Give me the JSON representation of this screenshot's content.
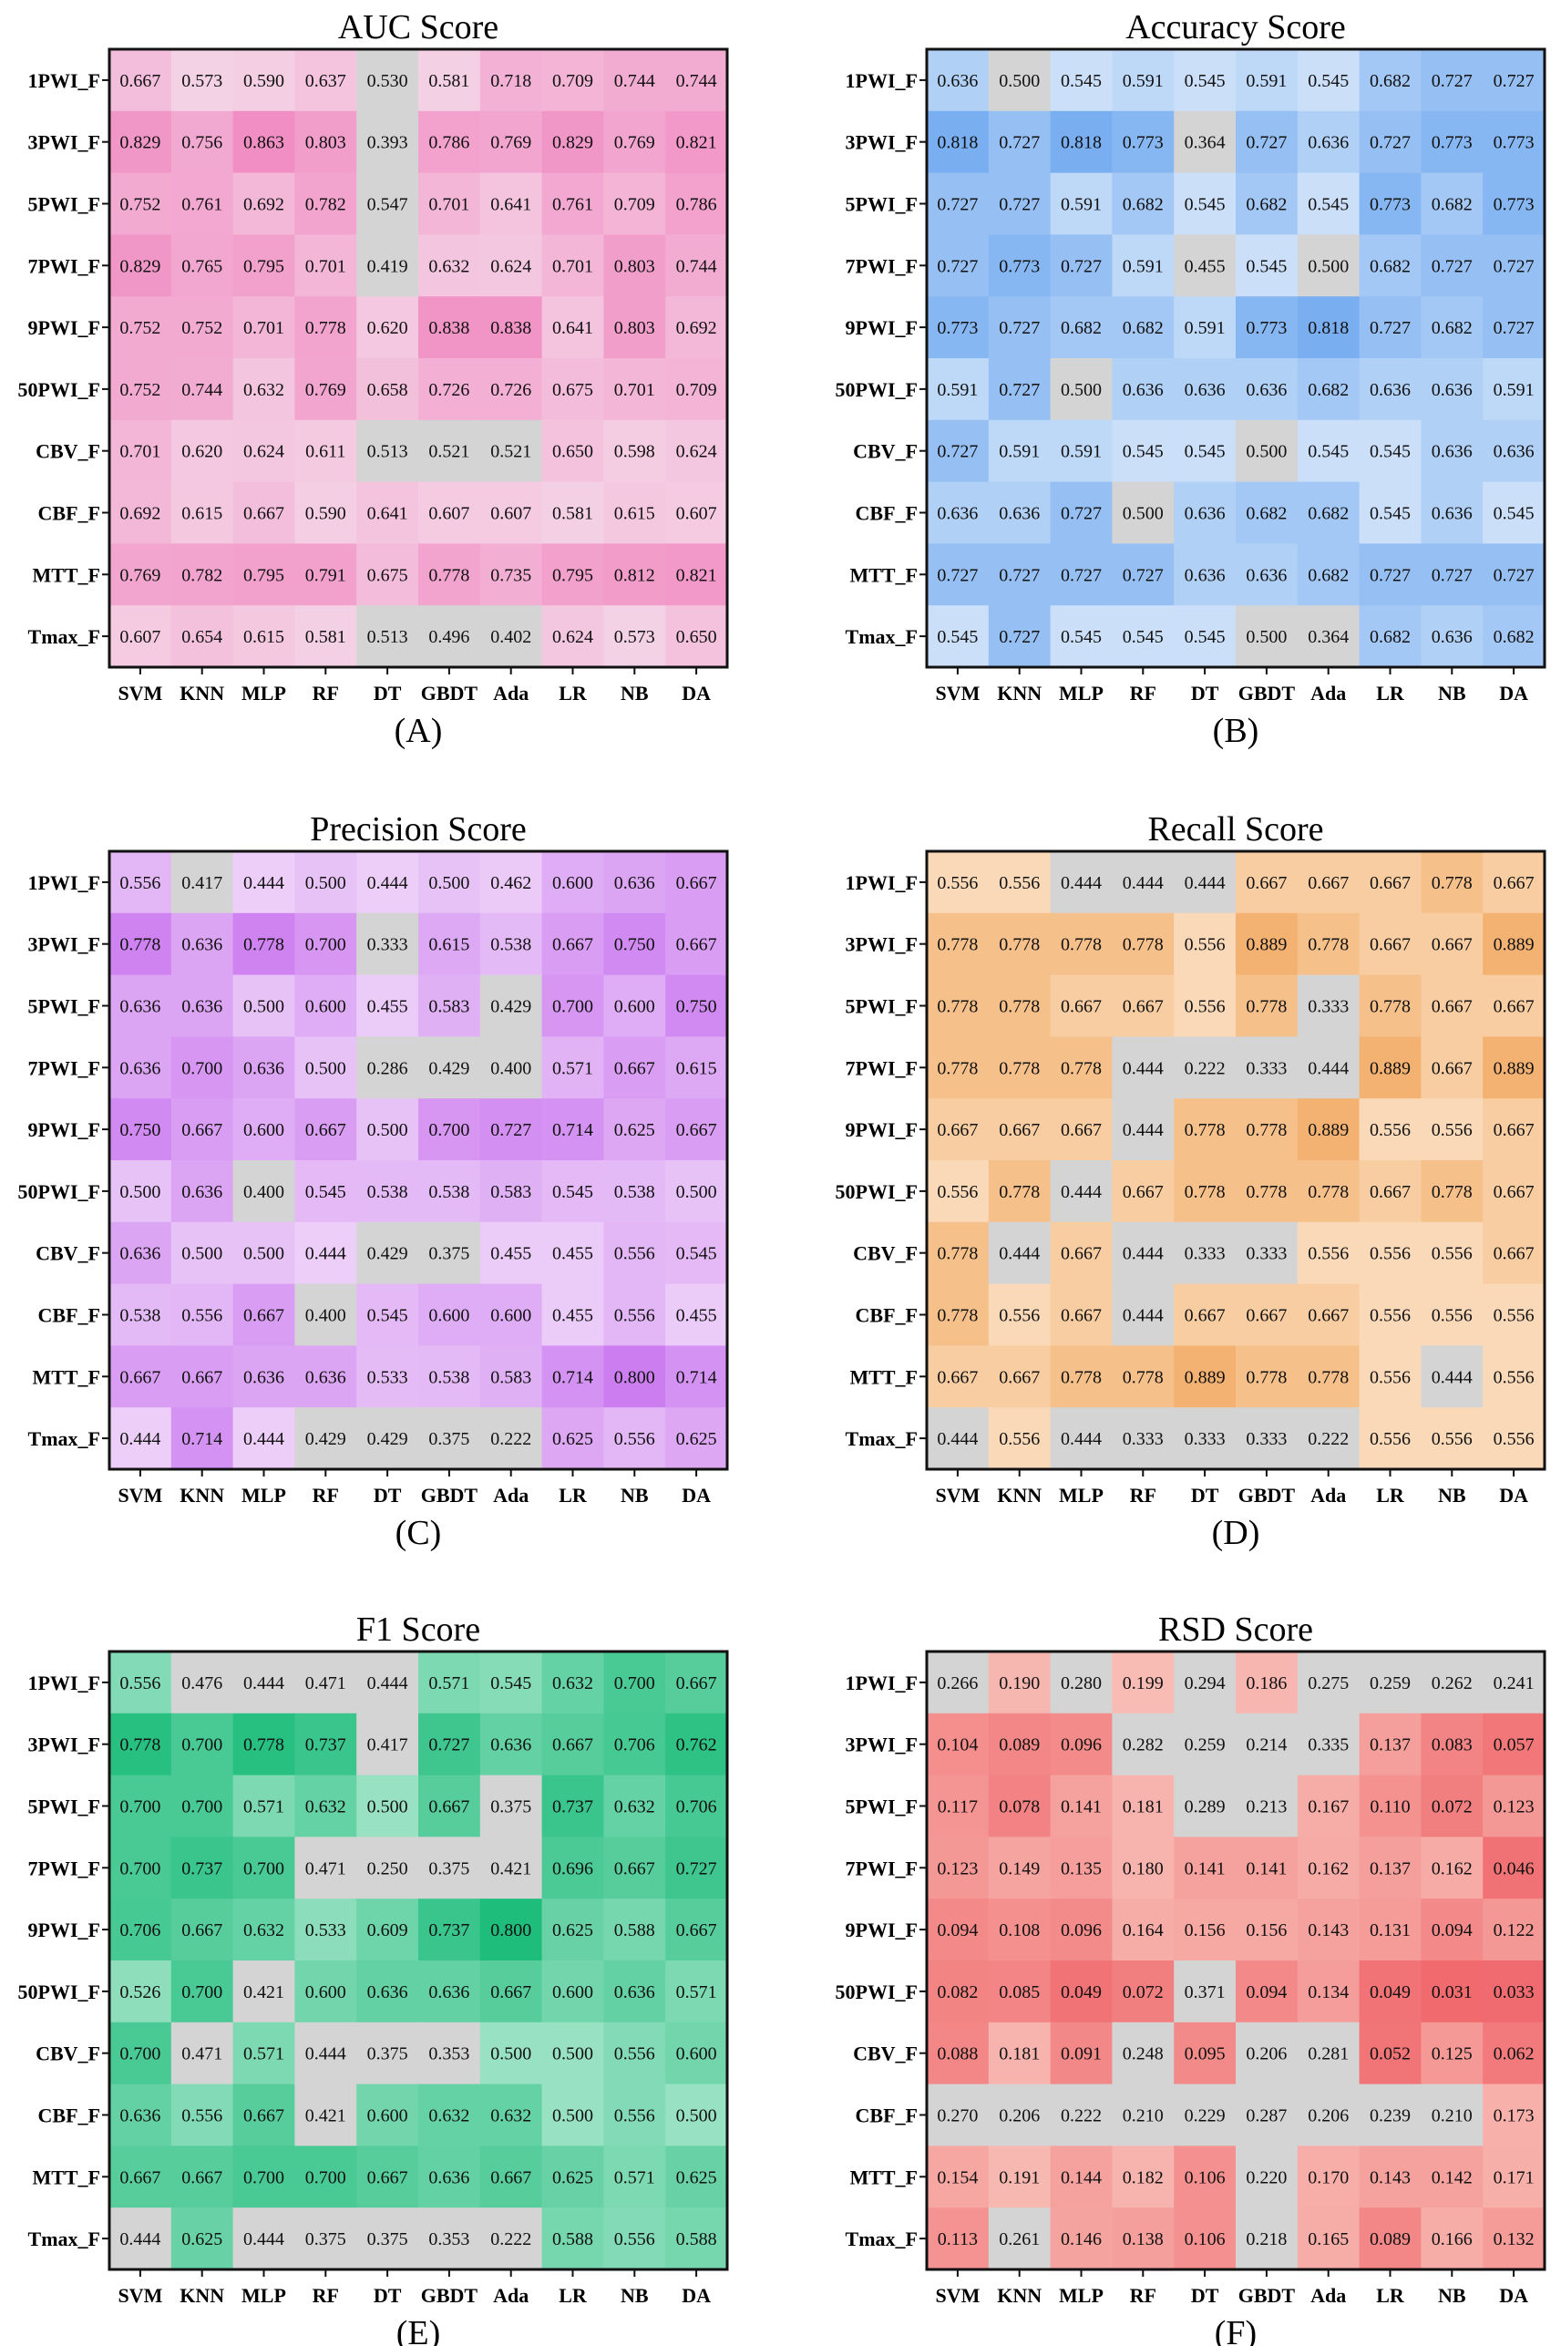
{
  "figure": {
    "rows": [
      "1PWI_F",
      "3PWI_F",
      "5PWI_F",
      "7PWI_F",
      "9PWI_F",
      "50PWI_F",
      "CBV_F",
      "CBF_F",
      "MTT_F",
      "Tmax_F"
    ],
    "columns": [
      "SVM",
      "KNN",
      "MLP",
      "RF",
      "DT",
      "GBDT",
      "Ada",
      "LR",
      "NB",
      "DA"
    ]
  },
  "chart_data": [
    {
      "type": "heatmap",
      "title": "AUC Score",
      "panel_label": "(A)",
      "colormap": {
        "low": "#f6f1f4",
        "high": "#f18fc4",
        "dim": "#d4d4d4"
      },
      "dim_threshold": 0.55,
      "values": [
        [
          0.667,
          0.573,
          0.59,
          0.637,
          0.53,
          0.581,
          0.718,
          0.709,
          0.744,
          0.744
        ],
        [
          0.829,
          0.756,
          0.863,
          0.803,
          0.393,
          0.786,
          0.769,
          0.829,
          0.769,
          0.821
        ],
        [
          0.752,
          0.761,
          0.692,
          0.782,
          0.547,
          0.701,
          0.641,
          0.761,
          0.709,
          0.786
        ],
        [
          0.829,
          0.765,
          0.795,
          0.701,
          0.419,
          0.632,
          0.624,
          0.701,
          0.803,
          0.744
        ],
        [
          0.752,
          0.752,
          0.701,
          0.778,
          0.62,
          0.838,
          0.838,
          0.641,
          0.803,
          0.692
        ],
        [
          0.752,
          0.744,
          0.632,
          0.769,
          0.658,
          0.726,
          0.726,
          0.675,
          0.701,
          0.709
        ],
        [
          0.701,
          0.62,
          0.624,
          0.611,
          0.513,
          0.521,
          0.521,
          0.65,
          0.598,
          0.624
        ],
        [
          0.692,
          0.615,
          0.667,
          0.59,
          0.641,
          0.607,
          0.607,
          0.581,
          0.615,
          0.607
        ],
        [
          0.769,
          0.782,
          0.795,
          0.791,
          0.675,
          0.778,
          0.735,
          0.795,
          0.812,
          0.821
        ],
        [
          0.607,
          0.654,
          0.615,
          0.581,
          0.513,
          0.496,
          0.402,
          0.624,
          0.573,
          0.65
        ]
      ]
    },
    {
      "type": "heatmap",
      "title": "Accuracy Score",
      "panel_label": "(B)",
      "colormap": {
        "low": "#f4f8fd",
        "high": "#79aef0",
        "dim": "#d4d4d4"
      },
      "dim_threshold": 0.52,
      "values": [
        [
          0.636,
          0.5,
          0.545,
          0.591,
          0.545,
          0.591,
          0.545,
          0.682,
          0.727,
          0.727
        ],
        [
          0.818,
          0.727,
          0.818,
          0.773,
          0.364,
          0.727,
          0.636,
          0.727,
          0.773,
          0.773
        ],
        [
          0.727,
          0.727,
          0.591,
          0.682,
          0.545,
          0.682,
          0.545,
          0.773,
          0.682,
          0.773
        ],
        [
          0.727,
          0.773,
          0.727,
          0.591,
          0.455,
          0.545,
          0.5,
          0.682,
          0.727,
          0.727
        ],
        [
          0.773,
          0.727,
          0.682,
          0.682,
          0.591,
          0.773,
          0.818,
          0.727,
          0.682,
          0.727
        ],
        [
          0.591,
          0.727,
          0.5,
          0.636,
          0.636,
          0.636,
          0.682,
          0.636,
          0.636,
          0.591
        ],
        [
          0.727,
          0.591,
          0.591,
          0.545,
          0.545,
          0.5,
          0.545,
          0.545,
          0.636,
          0.636
        ],
        [
          0.636,
          0.636,
          0.727,
          0.5,
          0.636,
          0.682,
          0.682,
          0.545,
          0.636,
          0.545
        ],
        [
          0.727,
          0.727,
          0.727,
          0.727,
          0.636,
          0.636,
          0.682,
          0.727,
          0.727,
          0.727
        ],
        [
          0.545,
          0.727,
          0.545,
          0.545,
          0.545,
          0.5,
          0.364,
          0.682,
          0.636,
          0.682
        ]
      ]
    },
    {
      "type": "heatmap",
      "title": "Precision Score",
      "panel_label": "(C)",
      "colormap": {
        "low": "#fbf3fc",
        "high": "#cc7ef0",
        "dim": "#d4d4d4"
      },
      "dim_threshold": 0.43,
      "values": [
        [
          0.556,
          0.417,
          0.444,
          0.5,
          0.444,
          0.5,
          0.462,
          0.6,
          0.636,
          0.667
        ],
        [
          0.778,
          0.636,
          0.778,
          0.7,
          0.333,
          0.615,
          0.538,
          0.667,
          0.75,
          0.667
        ],
        [
          0.636,
          0.636,
          0.5,
          0.6,
          0.455,
          0.583,
          0.429,
          0.7,
          0.6,
          0.75
        ],
        [
          0.636,
          0.7,
          0.636,
          0.5,
          0.286,
          0.429,
          0.4,
          0.571,
          0.667,
          0.615
        ],
        [
          0.75,
          0.667,
          0.6,
          0.667,
          0.5,
          0.7,
          0.727,
          0.714,
          0.625,
          0.667
        ],
        [
          0.5,
          0.636,
          0.4,
          0.545,
          0.538,
          0.538,
          0.583,
          0.545,
          0.538,
          0.5
        ],
        [
          0.636,
          0.5,
          0.5,
          0.444,
          0.429,
          0.375,
          0.455,
          0.455,
          0.556,
          0.545
        ],
        [
          0.538,
          0.556,
          0.667,
          0.4,
          0.545,
          0.6,
          0.6,
          0.455,
          0.556,
          0.455
        ],
        [
          0.667,
          0.667,
          0.636,
          0.636,
          0.533,
          0.538,
          0.583,
          0.714,
          0.8,
          0.714
        ],
        [
          0.444,
          0.714,
          0.444,
          0.429,
          0.429,
          0.375,
          0.222,
          0.625,
          0.556,
          0.625
        ]
      ]
    },
    {
      "type": "heatmap",
      "title": "Recall Score",
      "panel_label": "(D)",
      "colormap": {
        "low": "#fef8f0",
        "high": "#f4b272",
        "dim": "#d4d4d4"
      },
      "dim_threshold": 0.45,
      "values": [
        [
          0.556,
          0.556,
          0.444,
          0.444,
          0.444,
          0.667,
          0.667,
          0.667,
          0.778,
          0.667
        ],
        [
          0.778,
          0.778,
          0.778,
          0.778,
          0.556,
          0.889,
          0.778,
          0.667,
          0.667,
          0.889
        ],
        [
          0.778,
          0.778,
          0.667,
          0.667,
          0.556,
          0.778,
          0.333,
          0.778,
          0.667,
          0.667
        ],
        [
          0.778,
          0.778,
          0.778,
          0.444,
          0.222,
          0.333,
          0.444,
          0.889,
          0.667,
          0.889
        ],
        [
          0.667,
          0.667,
          0.667,
          0.444,
          0.778,
          0.778,
          0.889,
          0.556,
          0.556,
          0.667
        ],
        [
          0.556,
          0.778,
          0.444,
          0.667,
          0.778,
          0.778,
          0.778,
          0.667,
          0.778,
          0.667
        ],
        [
          0.778,
          0.444,
          0.667,
          0.444,
          0.333,
          0.333,
          0.556,
          0.556,
          0.556,
          0.667
        ],
        [
          0.778,
          0.556,
          0.667,
          0.444,
          0.667,
          0.667,
          0.667,
          0.556,
          0.556,
          0.556
        ],
        [
          0.667,
          0.667,
          0.778,
          0.778,
          0.889,
          0.778,
          0.778,
          0.556,
          0.444,
          0.556
        ],
        [
          0.444,
          0.556,
          0.444,
          0.333,
          0.333,
          0.333,
          0.222,
          0.556,
          0.556,
          0.556
        ]
      ]
    },
    {
      "type": "heatmap",
      "title": "F1 Score",
      "panel_label": "(E)",
      "colormap": {
        "low": "#eefaf4",
        "high": "#1fbd7c",
        "dim": "#d4d4d4"
      },
      "dim_threshold": 0.48,
      "values": [
        [
          0.556,
          0.476,
          0.444,
          0.471,
          0.444,
          0.571,
          0.545,
          0.632,
          0.7,
          0.667
        ],
        [
          0.778,
          0.7,
          0.778,
          0.737,
          0.417,
          0.727,
          0.636,
          0.667,
          0.706,
          0.762
        ],
        [
          0.7,
          0.7,
          0.571,
          0.632,
          0.5,
          0.667,
          0.375,
          0.737,
          0.632,
          0.706
        ],
        [
          0.7,
          0.737,
          0.7,
          0.471,
          0.25,
          0.375,
          0.421,
          0.696,
          0.667,
          0.727
        ],
        [
          0.706,
          0.667,
          0.632,
          0.533,
          0.609,
          0.737,
          0.8,
          0.625,
          0.588,
          0.667
        ],
        [
          0.526,
          0.7,
          0.421,
          0.6,
          0.636,
          0.636,
          0.667,
          0.6,
          0.636,
          0.571
        ],
        [
          0.7,
          0.471,
          0.571,
          0.444,
          0.375,
          0.353,
          0.5,
          0.5,
          0.556,
          0.6
        ],
        [
          0.636,
          0.556,
          0.667,
          0.421,
          0.6,
          0.632,
          0.632,
          0.5,
          0.556,
          0.5
        ],
        [
          0.667,
          0.667,
          0.7,
          0.7,
          0.667,
          0.636,
          0.667,
          0.625,
          0.571,
          0.625
        ],
        [
          0.444,
          0.625,
          0.444,
          0.375,
          0.375,
          0.353,
          0.222,
          0.588,
          0.556,
          0.588
        ]
      ]
    },
    {
      "type": "heatmap",
      "title": "RSD Score",
      "panel_label": "(F)",
      "reversed": true,
      "colormap": {
        "low": "#fefcec",
        "high": "#f06a6e",
        "dim": "#d4d4d4"
      },
      "dim_threshold": 0.2,
      "values": [
        [
          0.266,
          0.19,
          0.28,
          0.199,
          0.294,
          0.186,
          0.275,
          0.259,
          0.262,
          0.241
        ],
        [
          0.104,
          0.089,
          0.096,
          0.282,
          0.259,
          0.214,
          0.335,
          0.137,
          0.083,
          0.057
        ],
        [
          0.117,
          0.078,
          0.141,
          0.181,
          0.289,
          0.213,
          0.167,
          0.11,
          0.072,
          0.123
        ],
        [
          0.123,
          0.149,
          0.135,
          0.18,
          0.141,
          0.141,
          0.162,
          0.137,
          0.162,
          0.046
        ],
        [
          0.094,
          0.108,
          0.096,
          0.164,
          0.156,
          0.156,
          0.143,
          0.131,
          0.094,
          0.122
        ],
        [
          0.082,
          0.085,
          0.049,
          0.072,
          0.371,
          0.094,
          0.134,
          0.049,
          0.031,
          0.033
        ],
        [
          0.088,
          0.181,
          0.091,
          0.248,
          0.095,
          0.206,
          0.281,
          0.052,
          0.125,
          0.062
        ],
        [
          0.27,
          0.206,
          0.222,
          0.21,
          0.229,
          0.287,
          0.206,
          0.239,
          0.21,
          0.173
        ],
        [
          0.154,
          0.191,
          0.144,
          0.182,
          0.106,
          0.22,
          0.17,
          0.143,
          0.142,
          0.171
        ],
        [
          0.113,
          0.261,
          0.146,
          0.138,
          0.106,
          0.218,
          0.165,
          0.089,
          0.166,
          0.132
        ]
      ]
    }
  ]
}
